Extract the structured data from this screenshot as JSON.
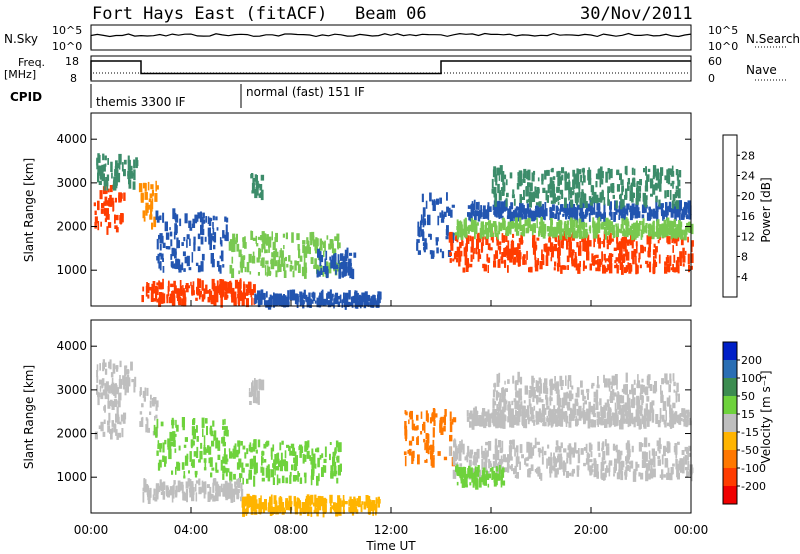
{
  "header": {
    "title": "Fort Hays East (fitACF)",
    "beam": "Beam 06",
    "date": "30/Nov/2011"
  },
  "noise_panel": {
    "left_label": "N.Sky",
    "left_ticks": [
      "10^5",
      "10^0"
    ],
    "right_label": "N.Search",
    "right_ticks": [
      "10^5",
      "10^0"
    ]
  },
  "freq_panel": {
    "left_label_line1": "Freq.",
    "left_label_line2": "[MHz]",
    "left_ticks": [
      "18",
      "8"
    ],
    "right_label": "Nave",
    "right_ticks": [
      "60",
      "0"
    ],
    "freq_steps": [
      {
        "start_hour": 0.0,
        "level": 16.0
      },
      {
        "start_hour": 2.0,
        "level": 11.0
      },
      {
        "start_hour": 14.0,
        "level": 16.0
      }
    ]
  },
  "cpid_panel": {
    "label": "CPID",
    "segments": [
      {
        "start_hour": 0.0,
        "text": "themis 3300 IF"
      },
      {
        "start_hour": 6.0,
        "text": "normal (fast) 151 IF"
      }
    ]
  },
  "chart_data": [
    {
      "type": "heatmap",
      "name": "power",
      "ylabel": "Slant Range [km]",
      "yticks": [
        "1000",
        "2000",
        "3000",
        "4000"
      ],
      "ylim": [
        180,
        4600
      ],
      "xlim": [
        0,
        24
      ],
      "colorbar": {
        "label": "Power [dB]",
        "ticks": [
          "4",
          "8",
          "12",
          "16",
          "20",
          "24",
          "28"
        ],
        "colors": [
          "#0000ff",
          "#2255b0",
          "#3c8c6a",
          "#78c850",
          "#ffd200",
          "#ff8c00",
          "#ff3c00",
          "#f00000"
        ]
      },
      "regions": [
        {
          "t0": 0.1,
          "t1": 1.3,
          "r0": 1900,
          "r1": 2900,
          "color": "#ff3c00"
        },
        {
          "t0": 0.2,
          "t1": 1.8,
          "r0": 2900,
          "r1": 3600,
          "color": "#3c8c6a"
        },
        {
          "t0": 1.9,
          "t1": 2.6,
          "r0": 2000,
          "r1": 3000,
          "color": "#ff8c00"
        },
        {
          "t0": 2.5,
          "t1": 5.5,
          "r0": 1000,
          "r1": 2300,
          "color": "#2255b0"
        },
        {
          "t0": 5.5,
          "t1": 10.0,
          "r0": 900,
          "r1": 1800,
          "color": "#78c850"
        },
        {
          "t0": 9.0,
          "t1": 10.5,
          "r0": 900,
          "r1": 1400,
          "color": "#2255b0"
        },
        {
          "t0": 2.0,
          "t1": 6.5,
          "r0": 250,
          "r1": 700,
          "color": "#ff3c00"
        },
        {
          "t0": 6.5,
          "t1": 11.5,
          "r0": 200,
          "r1": 450,
          "color": "#2255b0"
        },
        {
          "t0": 6.3,
          "t1": 6.8,
          "r0": 2700,
          "r1": 3200,
          "color": "#3c8c6a"
        },
        {
          "t0": 13.0,
          "t1": 14.5,
          "r0": 1300,
          "r1": 2700,
          "color": "#2255b0"
        },
        {
          "t0": 14.3,
          "t1": 24.0,
          "r0": 1000,
          "r1": 1800,
          "color": "#ff3c00"
        },
        {
          "t0": 15.0,
          "t1": 24.0,
          "r0": 2200,
          "r1": 2500,
          "color": "#2255b0"
        },
        {
          "t0": 16.0,
          "t1": 23.5,
          "r0": 2500,
          "r1": 3300,
          "color": "#3c8c6a"
        },
        {
          "t0": 14.5,
          "t1": 24.0,
          "r0": 1800,
          "r1": 2100,
          "color": "#78c850"
        }
      ]
    },
    {
      "type": "heatmap",
      "name": "velocity",
      "ylabel": "Slant Range [km]",
      "yticks": [
        "1000",
        "2000",
        "3000",
        "4000"
      ],
      "ylim": [
        180,
        4600
      ],
      "xlim": [
        0,
        24
      ],
      "xticks": [
        "00:00",
        "04:00",
        "08:00",
        "12:00",
        "16:00",
        "20:00",
        "00:00"
      ],
      "xlabel": "Time UT",
      "colorbar": {
        "label": "Velocity [m s⁻¹]",
        "ticks": [
          "200",
          "100",
          "50",
          "15",
          "-15",
          "-50",
          "-100",
          "-200"
        ],
        "colors": [
          "#0020c8",
          "#2a6eb4",
          "#3c8c50",
          "#6ed23c",
          "#bebebe",
          "#ffb400",
          "#ff7800",
          "#ff3c00",
          "#f00000"
        ]
      },
      "regions": [
        {
          "t0": 0.1,
          "t1": 1.3,
          "r0": 1900,
          "r1": 2900,
          "color": "#bebebe"
        },
        {
          "t0": 0.2,
          "t1": 1.8,
          "r0": 2900,
          "r1": 3600,
          "color": "#bebebe"
        },
        {
          "t0": 1.9,
          "t1": 2.6,
          "r0": 2000,
          "r1": 3000,
          "color": "#bebebe"
        },
        {
          "t0": 2.5,
          "t1": 5.5,
          "r0": 1000,
          "r1": 2300,
          "color": "#6ed23c"
        },
        {
          "t0": 5.5,
          "t1": 10.0,
          "r0": 900,
          "r1": 1800,
          "color": "#6ed23c"
        },
        {
          "t0": 2.0,
          "t1": 6.0,
          "r0": 500,
          "r1": 900,
          "color": "#bebebe"
        },
        {
          "t0": 6.0,
          "t1": 11.5,
          "r0": 200,
          "r1": 500,
          "color": "#ffb400"
        },
        {
          "t0": 6.3,
          "t1": 6.8,
          "r0": 2700,
          "r1": 3200,
          "color": "#bebebe"
        },
        {
          "t0": 12.5,
          "t1": 14.5,
          "r0": 1300,
          "r1": 2500,
          "color": "#ff7800"
        },
        {
          "t0": 14.3,
          "t1": 24.0,
          "r0": 1000,
          "r1": 1800,
          "color": "#bebebe"
        },
        {
          "t0": 15.0,
          "t1": 24.0,
          "r0": 2200,
          "r1": 2500,
          "color": "#bebebe"
        },
        {
          "t0": 16.0,
          "t1": 23.5,
          "r0": 2500,
          "r1": 3300,
          "color": "#bebebe"
        },
        {
          "t0": 14.5,
          "t1": 16.5,
          "r0": 800,
          "r1": 1200,
          "color": "#6ed23c"
        }
      ]
    }
  ]
}
